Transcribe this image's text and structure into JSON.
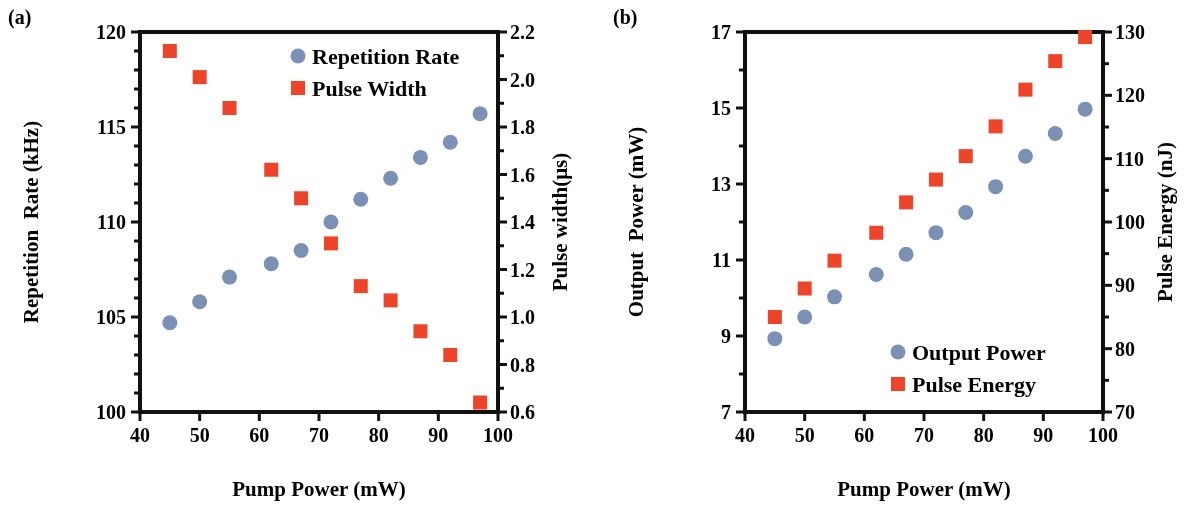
{
  "chart_data": [
    {
      "type": "scatter",
      "title": "(a)",
      "xlabel": "Pump Power (mW)",
      "ylabel": "Repetition  Rate (kHz)",
      "y2label": "Pulse width(μs)",
      "x": [
        45,
        50,
        55,
        62,
        67,
        72,
        77,
        82,
        87,
        92,
        97
      ],
      "xlim": [
        40,
        100
      ],
      "xticks": [
        40,
        50,
        60,
        70,
        80,
        90,
        100
      ],
      "ylim": [
        100,
        120
      ],
      "yticks": [
        100,
        {
          "value": 101,
          "label": null
        },
        {
          "value": 102,
          "label": null
        },
        {
          "value": 103,
          "label": null
        },
        {
          "value": 104,
          "label": null
        },
        105,
        {
          "value": 106,
          "label": null
        },
        {
          "value": 107,
          "label": null
        },
        {
          "value": 108,
          "label": null
        },
        {
          "value": 109,
          "label": null
        },
        110,
        {
          "value": 111,
          "label": null
        },
        {
          "value": 112,
          "label": null
        },
        {
          "value": 113,
          "label": null
        },
        {
          "value": 114,
          "label": null
        },
        115,
        {
          "value": 116,
          "label": null
        },
        {
          "value": 117,
          "label": null
        },
        {
          "value": 118,
          "label": null
        },
        {
          "value": 119,
          "label": null
        },
        120
      ],
      "y2lim": [
        0.6,
        2.2
      ],
      "y2ticks": [
        0.6,
        {
          "value": 0.7,
          "label": null
        },
        0.8,
        {
          "value": 0.9,
          "label": null
        },
        {
          "value": 1,
          "label": "1.0"
        },
        {
          "value": 1.1,
          "label": null
        },
        1.2,
        {
          "value": 1.3,
          "label": null
        },
        1.4,
        {
          "value": 1.5,
          "label": null
        },
        1.6,
        {
          "value": 1.7,
          "label": null
        },
        1.8,
        {
          "value": 1.9,
          "label": null
        },
        {
          "value": 2,
          "label": "2.0"
        },
        {
          "value": 2.1,
          "label": null
        },
        2.2
      ],
      "grid": false,
      "legend": "top right",
      "series": [
        {
          "name": "Repetition Rate",
          "color": "#7a90b4",
          "marker": "circle",
          "values": [
            104.7,
            105.8,
            107.1,
            107.8,
            108.5,
            110.0,
            111.2,
            112.3,
            113.4,
            114.2,
            115.7
          ]
        },
        {
          "name": "Pulse Width",
          "color": "#ee4429",
          "marker": "square",
          "axis": "y2",
          "values": [
            2.12,
            2.01,
            1.88,
            1.62,
            1.5,
            1.31,
            1.13,
            1.07,
            0.94,
            0.84,
            0.64
          ]
        }
      ]
    },
    {
      "type": "scatter",
      "title": "(b)",
      "xlabel": "Pump Power (mW)",
      "ylabel": "Output  Power (mW)",
      "y2label": "Pulse Energy (nJ)",
      "x": [
        45,
        50,
        55,
        62,
        67,
        72,
        77,
        82,
        87,
        92,
        97
      ],
      "xlim": [
        40,
        100
      ],
      "xticks": [
        40,
        50,
        60,
        70,
        80,
        90,
        100
      ],
      "ylim": [
        7,
        17
      ],
      "yticks": [
        7,
        {
          "value": 8,
          "label": null
        },
        9,
        {
          "value": 10,
          "label": null
        },
        11,
        {
          "value": 12,
          "label": null
        },
        13,
        {
          "value": 14,
          "label": null
        },
        15,
        {
          "value": 16,
          "label": null
        },
        17
      ],
      "y2lim": [
        70,
        130
      ],
      "y2ticks": [
        70,
        {
          "value": 75,
          "label": null
        },
        80,
        {
          "value": 85,
          "label": null
        },
        90,
        {
          "value": 95,
          "label": null
        },
        100,
        {
          "value": 105,
          "label": null
        },
        110,
        {
          "value": 115,
          "label": null
        },
        120,
        {
          "value": 125,
          "label": null
        },
        130
      ],
      "grid": false,
      "legend": "bottom right",
      "series": [
        {
          "name": "Output Power",
          "color": "#7a90b4",
          "marker": "circle",
          "values": [
            8.93,
            9.5,
            10.03,
            10.62,
            11.15,
            11.72,
            12.25,
            12.93,
            13.73,
            14.33,
            14.97
          ]
        },
        {
          "name": "Pulse Energy",
          "color": "#ee4429",
          "marker": "square",
          "axis": "y2",
          "values": [
            85,
            89.5,
            93.9,
            98.3,
            103.1,
            106.7,
            110.4,
            115.1,
            120.9,
            125.4,
            129.2
          ]
        }
      ]
    }
  ]
}
